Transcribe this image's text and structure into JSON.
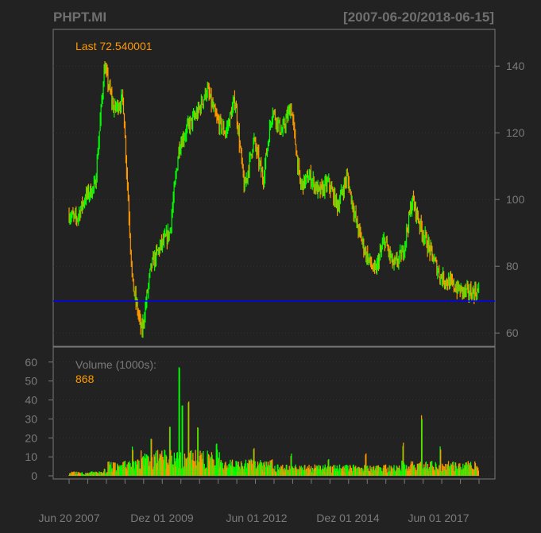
{
  "header": {
    "symbol": "PHPT.MI",
    "date_range": "[2007-06-20/2018-06-15]"
  },
  "price_panel": {
    "last_label": "Last 72.540001"
  },
  "volume_panel": {
    "label": "Volume (1000s):",
    "last_value": "868"
  },
  "colors": {
    "background": "#222222",
    "frame": "#7a7a7a",
    "grid": "#333333",
    "up_candle": "#00ff00",
    "down_candle": "#ff9900",
    "last_label": "#ff9900",
    "hline": "#0000ff"
  },
  "chart_data": [
    {
      "type": "candlestick",
      "title": "PHPT.MI",
      "subtitle": "[2007-06-20/2018-06-15]",
      "ylim": [
        56,
        151
      ],
      "y_ticks": [
        "60",
        "80",
        "100",
        "120",
        "140"
      ],
      "x_tick_labels": [
        "Jun 20 2007",
        "Dez 01 2009",
        "Jun 01 2012",
        "Dez 01 2014",
        "Jun 01 2017"
      ],
      "last": 72.540001,
      "hline": 69.7,
      "x": [
        "2007-06",
        "2007-09",
        "2007-12",
        "2008-03",
        "2008-06",
        "2008-09",
        "2008-12",
        "2009-03",
        "2009-06",
        "2009-09",
        "2009-12",
        "2010-03",
        "2010-06",
        "2010-09",
        "2010-12",
        "2011-03",
        "2011-06",
        "2011-09",
        "2011-12",
        "2012-03",
        "2012-06",
        "2012-09",
        "2012-12",
        "2013-03",
        "2013-06",
        "2013-09",
        "2013-12",
        "2014-03",
        "2014-06",
        "2014-09",
        "2014-12",
        "2015-03",
        "2015-06",
        "2015-09",
        "2015-12",
        "2016-03",
        "2016-06",
        "2016-09",
        "2016-12",
        "2017-03",
        "2017-06",
        "2017-09",
        "2017-12",
        "2018-03",
        "2018-06"
      ],
      "close": [
        96,
        94,
        101,
        104,
        140,
        127,
        130,
        75,
        60,
        80,
        86,
        90,
        116,
        122,
        126,
        133,
        124,
        120,
        130,
        103,
        118,
        106,
        127,
        120,
        128,
        104,
        107,
        102,
        105,
        98,
        107,
        93,
        84,
        78,
        88,
        80,
        84,
        100,
        91,
        84,
        77,
        75,
        73,
        72,
        72.5
      ]
    },
    {
      "type": "bar",
      "title": "Volume (1000s):",
      "ylim": [
        0,
        62
      ],
      "y_ticks": [
        "0",
        "10",
        "20",
        "30",
        "40",
        "50",
        "60"
      ],
      "last": 868,
      "peaks": [
        {
          "x": "2008-06",
          "value": 4
        },
        {
          "x": "2009-03",
          "value": 16
        },
        {
          "x": "2009-09",
          "value": 22
        },
        {
          "x": "2010-03",
          "value": 30
        },
        {
          "x": "2010-06",
          "value": 61
        },
        {
          "x": "2010-07",
          "value": 38
        },
        {
          "x": "2010-09",
          "value": 42
        },
        {
          "x": "2010-12",
          "value": 28
        },
        {
          "x": "2011-06",
          "value": 19
        },
        {
          "x": "2012-06",
          "value": 15
        },
        {
          "x": "2013-06",
          "value": 12
        },
        {
          "x": "2014-06",
          "value": 9
        },
        {
          "x": "2015-06",
          "value": 12
        },
        {
          "x": "2016-06",
          "value": 18
        },
        {
          "x": "2016-12",
          "value": 34
        },
        {
          "x": "2017-06",
          "value": 16
        },
        {
          "x": "2018-03",
          "value": 6
        }
      ]
    }
  ]
}
